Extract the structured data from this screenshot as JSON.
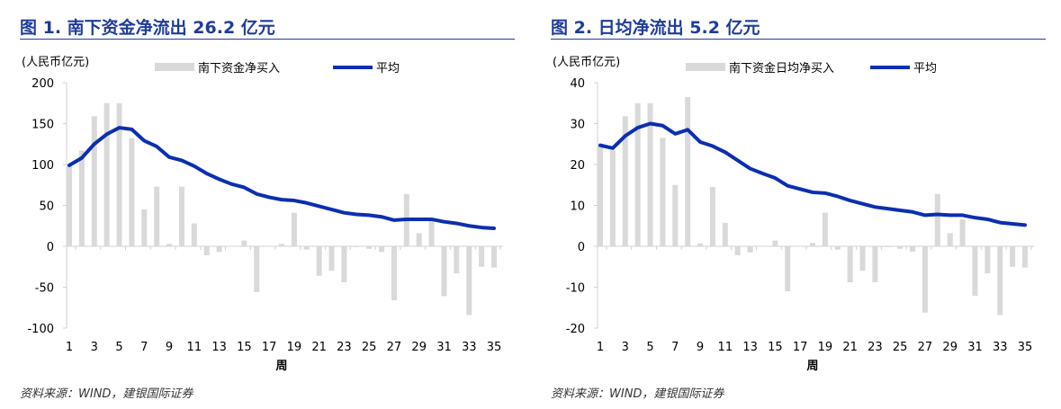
{
  "chart_data": [
    {
      "type": "bar+line",
      "title": "图 1. 南下资金净流出 26.2 亿元",
      "unit_label": "(人民币亿元)",
      "xlabel": "周",
      "ylim": [
        -100,
        200
      ],
      "yticks": [
        -100,
        -50,
        0,
        50,
        100,
        150,
        200
      ],
      "x": [
        1,
        2,
        3,
        4,
        5,
        6,
        7,
        8,
        9,
        10,
        11,
        12,
        13,
        14,
        15,
        16,
        17,
        18,
        19,
        20,
        21,
        22,
        23,
        24,
        25,
        26,
        27,
        28,
        29,
        30,
        31,
        32,
        33,
        34,
        35
      ],
      "xticks": [
        1,
        3,
        5,
        7,
        9,
        11,
        13,
        15,
        17,
        19,
        21,
        23,
        25,
        27,
        29,
        31,
        33,
        35
      ],
      "legend_position": "top",
      "series": [
        {
          "name": "南下资金净买入",
          "kind": "bar",
          "color": "#d9d9d9",
          "values": [
            99,
            117,
            159,
            175,
            175,
            132,
            45,
            73,
            3,
            73,
            28,
            -11,
            -7,
            0,
            7,
            -56,
            0,
            3,
            41,
            -4,
            -36,
            -30,
            -44,
            -1,
            -3,
            -7,
            -66,
            64,
            16,
            33,
            -61,
            -33,
            -84,
            -25,
            -26
          ]
        },
        {
          "name": "平均",
          "kind": "line",
          "color": "#0b2fb0",
          "values": [
            99,
            108,
            125,
            137,
            145,
            143,
            129,
            122,
            109,
            105,
            98,
            89,
            82,
            76,
            72,
            64,
            60,
            57,
            56,
            53,
            49,
            45,
            41,
            39,
            38,
            36,
            32,
            33,
            33,
            33,
            30,
            28,
            25,
            23,
            22
          ]
        }
      ],
      "source": "资料来源：WIND，建银国际证券"
    },
    {
      "type": "bar+line",
      "title": "图 2. 日均净流出 5.2 亿元",
      "unit_label": "(人民币亿元)",
      "xlabel": "周",
      "ylim": [
        -20,
        40
      ],
      "yticks": [
        -20,
        -10,
        0,
        10,
        20,
        30,
        40
      ],
      "x": [
        1,
        2,
        3,
        4,
        5,
        6,
        7,
        8,
        9,
        10,
        11,
        12,
        13,
        14,
        15,
        16,
        17,
        18,
        19,
        20,
        21,
        22,
        23,
        24,
        25,
        26,
        27,
        28,
        29,
        30,
        31,
        32,
        33,
        34,
        35
      ],
      "xticks": [
        1,
        3,
        5,
        7,
        9,
        11,
        13,
        15,
        17,
        19,
        21,
        23,
        25,
        27,
        29,
        31,
        33,
        35
      ],
      "legend_position": "top",
      "series": [
        {
          "name": "南下资金日均净买入",
          "kind": "bar",
          "color": "#d9d9d9",
          "values": [
            24.7,
            23.5,
            31.8,
            35,
            35,
            26.5,
            15,
            36.5,
            0.7,
            14.5,
            5.7,
            -2.2,
            -1.5,
            0,
            1.4,
            -11,
            0,
            0.8,
            8.2,
            -0.8,
            -8.8,
            -6,
            -8.8,
            -0.2,
            -0.6,
            -1.3,
            -16.2,
            12.8,
            3.2,
            6.6,
            -12.1,
            -6.6,
            -16.8,
            -5,
            -5.2
          ]
        },
        {
          "name": "平均",
          "kind": "line",
          "color": "#0b2fb0",
          "values": [
            24.7,
            24,
            27,
            29,
            30,
            29.5,
            27.5,
            28.5,
            25.5,
            24.5,
            23,
            21,
            19,
            17.8,
            16.7,
            14.8,
            14,
            13.2,
            13,
            12.2,
            11.2,
            10.4,
            9.6,
            9.2,
            8.8,
            8.4,
            7.6,
            7.8,
            7.6,
            7.6,
            7,
            6.6,
            5.8,
            5.5,
            5.2
          ]
        }
      ],
      "source": "资料来源：WIND，建银国际证券"
    }
  ]
}
